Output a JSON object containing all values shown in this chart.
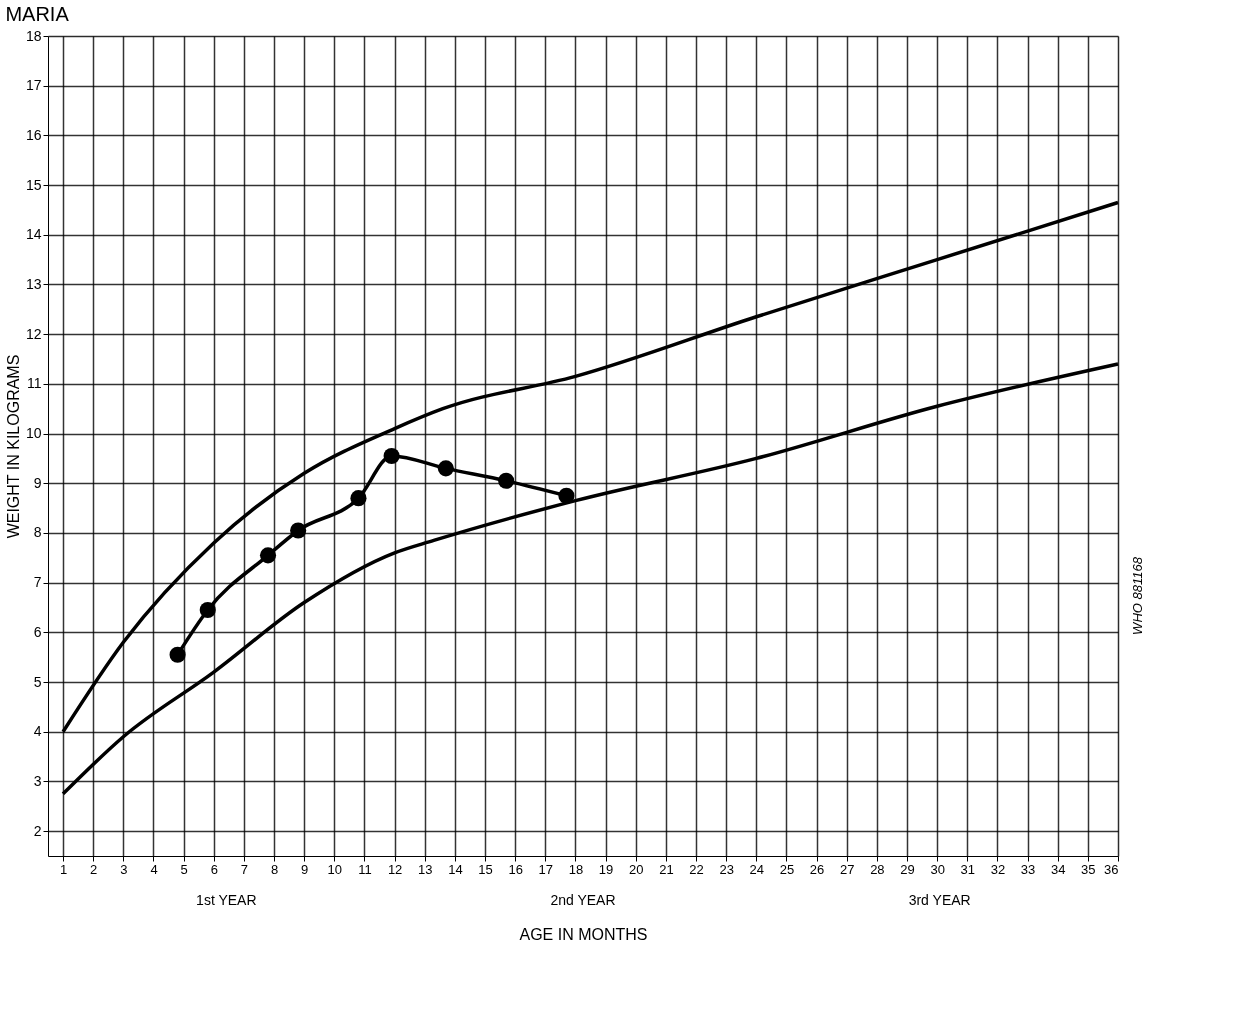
{
  "chart_data": {
    "type": "line",
    "title": "MARIA",
    "xlabel": "AGE IN MONTHS",
    "ylabel": "WEIGHT IN KILOGRAMS",
    "annotations": [
      "1st YEAR",
      "2nd YEAR",
      "3rd YEAR",
      "WHO 881168"
    ],
    "xlim": [
      0.5,
      36
    ],
    "ylim": [
      1.5,
      18
    ],
    "xticks": [
      1,
      2,
      3,
      4,
      5,
      6,
      7,
      8,
      9,
      10,
      11,
      12,
      13,
      14,
      15,
      16,
      17,
      18,
      19,
      20,
      21,
      22,
      23,
      24,
      25,
      26,
      27,
      28,
      29,
      30,
      31,
      32,
      33,
      34,
      35,
      36
    ],
    "yticks": [
      2,
      3,
      4,
      5,
      6,
      7,
      8,
      9,
      10,
      11,
      12,
      13,
      14,
      15,
      16,
      17,
      18
    ],
    "grid": true,
    "line_style": "solid",
    "series": [
      {
        "color": "#000000",
        "marker": "none",
        "x": [
          1,
          3,
          6,
          9,
          12,
          13.6,
          18,
          24,
          30,
          36
        ],
        "values": [
          4.0,
          5.8,
          7.8,
          9.2,
          10.1,
          10.5,
          11.15,
          12.35,
          13.5,
          14.65
        ]
      },
      {
        "color": "#000000",
        "marker": "none",
        "x": [
          1,
          3,
          6,
          9,
          12,
          13.3,
          18,
          24,
          30,
          36
        ],
        "values": [
          2.75,
          3.9,
          5.2,
          6.6,
          7.6,
          7.85,
          8.65,
          9.5,
          10.55,
          11.4
        ]
      },
      {
        "color": "#000000",
        "marker": "circle",
        "x": [
          4.8,
          5.8,
          7.8,
          8.8,
          10.8,
          11.9,
          13.7,
          15.7,
          17.7
        ],
        "values": [
          5.55,
          6.45,
          7.55,
          8.05,
          8.7,
          9.55,
          9.3,
          9.05,
          8.75
        ]
      }
    ]
  }
}
